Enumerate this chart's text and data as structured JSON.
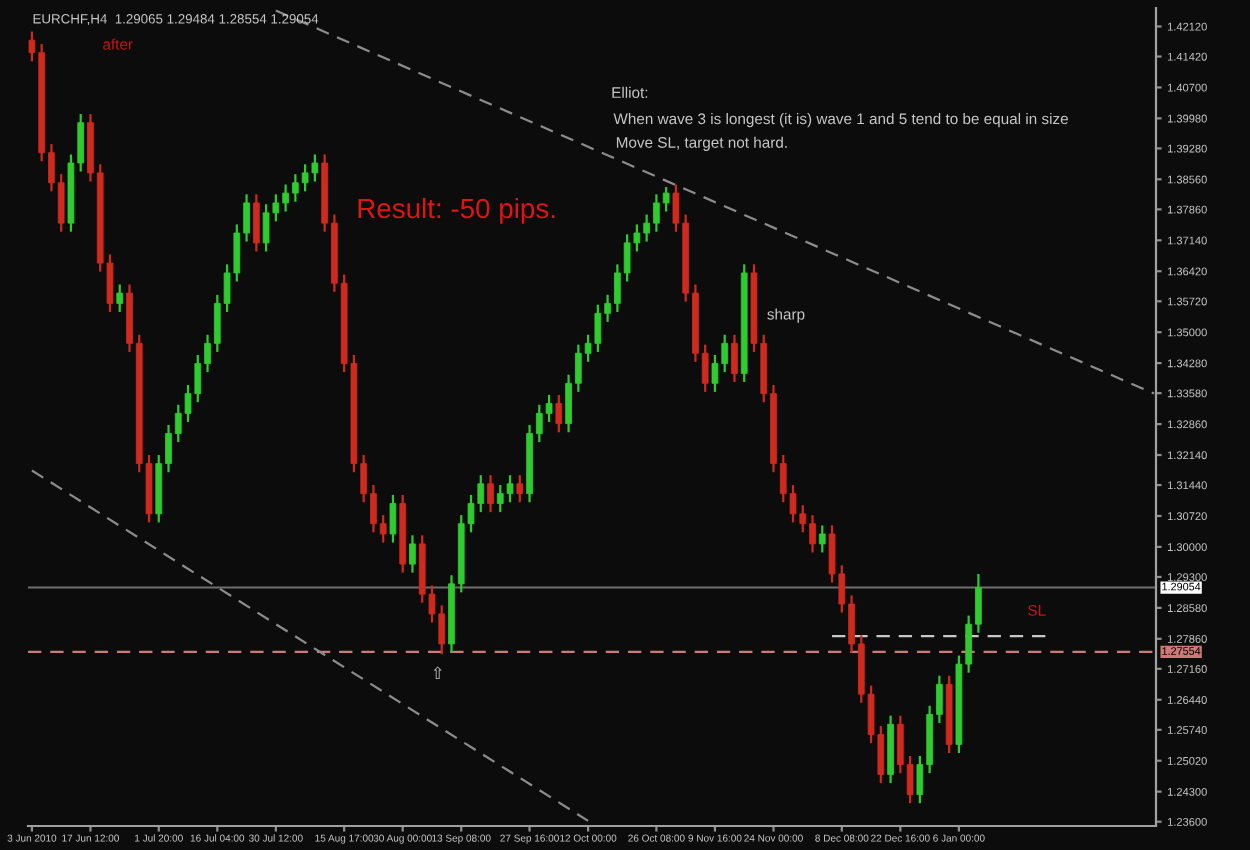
{
  "chart_data": {
    "type": "candlestick",
    "title": "EURCHF,H4  1.29065 1.29484 1.28554 1.29054",
    "categories": [
      "3 Jun 2010",
      null,
      null,
      null,
      null,
      null,
      "17 Jun 12:00",
      null,
      null,
      null,
      null,
      null,
      null,
      "1 Jul 20:00",
      null,
      null,
      null,
      null,
      null,
      "16 Jul 04:00",
      null,
      null,
      null,
      null,
      null,
      "30 Jul 12:00",
      null,
      null,
      null,
      null,
      null,
      null,
      "15 Aug 17:00",
      null,
      null,
      null,
      null,
      null,
      "30 Aug 00:00",
      null,
      null,
      null,
      null,
      null,
      "13 Sep 08:00",
      null,
      null,
      null,
      null,
      null,
      null,
      "27 Sep 16:00",
      null,
      null,
      null,
      null,
      null,
      "12 Oct 00:00",
      null,
      null,
      null,
      null,
      null,
      null,
      "26 Oct 08:00",
      null,
      null,
      null,
      null,
      null,
      "9 Nov 16:00",
      null,
      null,
      null,
      null,
      null,
      "24 Nov 00:00",
      null,
      null,
      null,
      null,
      null,
      null,
      "8 Dec 08:00",
      null,
      null,
      null,
      null,
      null,
      "22 Dec 16:00",
      null,
      null,
      null,
      null,
      null,
      "6 Jan 00:00",
      null,
      null,
      null,
      null,
      null,
      null,
      null,
      null,
      null,
      null,
      null,
      null,
      null,
      null,
      null,
      null,
      null,
      null,
      null,
      null
    ],
    "ohlc": [
      [
        1.418,
        1.42,
        1.4131,
        1.4151
      ],
      [
        1.4151,
        1.4171,
        1.3898,
        1.3918
      ],
      [
        1.3918,
        1.3938,
        1.3828,
        1.3848
      ],
      [
        1.3848,
        1.3868,
        1.3734,
        1.3754
      ],
      [
        1.3754,
        1.3914,
        1.3734,
        1.3894
      ],
      [
        1.3894,
        1.4008,
        1.3874,
        1.3988
      ],
      [
        1.3988,
        1.4008,
        1.3851,
        1.3871
      ],
      [
        1.3871,
        1.3891,
        1.3641,
        1.3661
      ],
      [
        1.3661,
        1.3681,
        1.3547,
        1.3567
      ],
      [
        1.3567,
        1.3611,
        1.3547,
        1.3591
      ],
      [
        1.3591,
        1.3611,
        1.3454,
        1.3474
      ],
      [
        1.3474,
        1.3494,
        1.3174,
        1.3194
      ],
      [
        1.3194,
        1.3214,
        1.3057,
        1.3077
      ],
      [
        1.3077,
        1.3214,
        1.3057,
        1.3194
      ],
      [
        1.3194,
        1.3284,
        1.3174,
        1.3264
      ],
      [
        1.3264,
        1.3331,
        1.3244,
        1.3311
      ],
      [
        1.3311,
        1.3377,
        1.3291,
        1.3357
      ],
      [
        1.3357,
        1.3447,
        1.3337,
        1.3427
      ],
      [
        1.3427,
        1.3494,
        1.3407,
        1.3474
      ],
      [
        1.3474,
        1.3587,
        1.3454,
        1.3567
      ],
      [
        1.3567,
        1.3658,
        1.3547,
        1.3638
      ],
      [
        1.3638,
        1.3751,
        1.3618,
        1.3731
      ],
      [
        1.3731,
        1.3821,
        1.3711,
        1.3801
      ],
      [
        1.3801,
        1.3821,
        1.3688,
        1.3708
      ],
      [
        1.3708,
        1.3798,
        1.3688,
        1.3778
      ],
      [
        1.3778,
        1.3821,
        1.3758,
        1.3801
      ],
      [
        1.3801,
        1.3844,
        1.3781,
        1.3824
      ],
      [
        1.3824,
        1.3868,
        1.3804,
        1.3848
      ],
      [
        1.3848,
        1.3891,
        1.3828,
        1.3871
      ],
      [
        1.3871,
        1.3914,
        1.3851,
        1.3894
      ],
      [
        1.3894,
        1.3914,
        1.3734,
        1.3754
      ],
      [
        1.3754,
        1.3774,
        1.3594,
        1.3614
      ],
      [
        1.3614,
        1.3634,
        1.3407,
        1.3427
      ],
      [
        1.3427,
        1.3447,
        1.3174,
        1.3194
      ],
      [
        1.3194,
        1.3214,
        1.3104,
        1.3124
      ],
      [
        1.3124,
        1.3144,
        1.3034,
        1.3054
      ],
      [
        1.3054,
        1.3074,
        1.301,
        1.303
      ],
      [
        1.303,
        1.3121,
        1.301,
        1.3101
      ],
      [
        1.3101,
        1.3121,
        1.294,
        1.296
      ],
      [
        1.296,
        1.3027,
        1.294,
        1.3007
      ],
      [
        1.3007,
        1.3027,
        1.287,
        1.289
      ],
      [
        1.289,
        1.291,
        1.2824,
        1.2844
      ],
      [
        1.2844,
        1.2864,
        1.275,
        1.2774
      ],
      [
        1.2774,
        1.2934,
        1.2754,
        1.2914
      ],
      [
        1.2914,
        1.3074,
        1.2894,
        1.3054
      ],
      [
        1.3054,
        1.3121,
        1.3034,
        1.3101
      ],
      [
        1.3101,
        1.3167,
        1.3081,
        1.3147
      ],
      [
        1.3147,
        1.3167,
        1.3081,
        1.3101
      ],
      [
        1.3101,
        1.3144,
        1.3081,
        1.3124
      ],
      [
        1.3124,
        1.3167,
        1.3104,
        1.3147
      ],
      [
        1.3147,
        1.3167,
        1.3104,
        1.3124
      ],
      [
        1.3124,
        1.3284,
        1.3104,
        1.3264
      ],
      [
        1.3264,
        1.3331,
        1.3244,
        1.3311
      ],
      [
        1.3311,
        1.3354,
        1.3291,
        1.3334
      ],
      [
        1.3334,
        1.3354,
        1.3267,
        1.3287
      ],
      [
        1.3287,
        1.3401,
        1.3267,
        1.3381
      ],
      [
        1.3381,
        1.3471,
        1.3361,
        1.3451
      ],
      [
        1.3451,
        1.3494,
        1.3431,
        1.3474
      ],
      [
        1.3474,
        1.3564,
        1.3454,
        1.3544
      ],
      [
        1.3544,
        1.3587,
        1.3524,
        1.3567
      ],
      [
        1.3567,
        1.3658,
        1.3547,
        1.3638
      ],
      [
        1.3638,
        1.3728,
        1.3618,
        1.3708
      ],
      [
        1.3708,
        1.3751,
        1.3688,
        1.3731
      ],
      [
        1.3731,
        1.3774,
        1.3711,
        1.3754
      ],
      [
        1.3754,
        1.3821,
        1.3734,
        1.3801
      ],
      [
        1.3801,
        1.3838,
        1.3781,
        1.3824
      ],
      [
        1.3824,
        1.3844,
        1.3734,
        1.3754
      ],
      [
        1.3754,
        1.3774,
        1.3571,
        1.3591
      ],
      [
        1.3591,
        1.3611,
        1.3431,
        1.3451
      ],
      [
        1.3451,
        1.3471,
        1.3361,
        1.3381
      ],
      [
        1.3381,
        1.3447,
        1.3361,
        1.3427
      ],
      [
        1.3427,
        1.3494,
        1.3407,
        1.3474
      ],
      [
        1.3474,
        1.3494,
        1.3384,
        1.3404
      ],
      [
        1.3404,
        1.3658,
        1.3384,
        1.3638
      ],
      [
        1.3638,
        1.3658,
        1.3454,
        1.3474
      ],
      [
        1.3474,
        1.3494,
        1.3337,
        1.3357
      ],
      [
        1.3357,
        1.3377,
        1.3174,
        1.3194
      ],
      [
        1.3194,
        1.3214,
        1.3104,
        1.3124
      ],
      [
        1.3124,
        1.3144,
        1.3057,
        1.3077
      ],
      [
        1.3077,
        1.3097,
        1.3034,
        1.3054
      ],
      [
        1.3054,
        1.3074,
        1.2987,
        1.3007
      ],
      [
        1.3007,
        1.305,
        1.2987,
        1.303
      ],
      [
        1.303,
        1.305,
        1.2917,
        1.2937
      ],
      [
        1.2937,
        1.2957,
        1.2847,
        1.2867
      ],
      [
        1.2867,
        1.2887,
        1.2754,
        1.2774
      ],
      [
        1.2774,
        1.2794,
        1.2637,
        1.2657
      ],
      [
        1.2657,
        1.2677,
        1.2543,
        1.2563
      ],
      [
        1.2563,
        1.2583,
        1.245,
        1.247
      ],
      [
        1.247,
        1.2607,
        1.245,
        1.2587
      ],
      [
        1.2587,
        1.2607,
        1.2473,
        1.2493
      ],
      [
        1.2493,
        1.2513,
        1.2403,
        1.2423
      ],
      [
        1.2423,
        1.2513,
        1.2403,
        1.2493
      ],
      [
        1.2493,
        1.263,
        1.2473,
        1.261
      ],
      [
        1.261,
        1.27,
        1.259,
        1.268
      ],
      [
        1.268,
        1.27,
        1.252,
        1.254
      ],
      [
        1.254,
        1.2747,
        1.252,
        1.2727
      ],
      [
        1.2727,
        1.284,
        1.2707,
        1.282
      ],
      [
        1.282,
        1.2937,
        1.28,
        1.29054
      ],
      null,
      null,
      null,
      null,
      null,
      null,
      null,
      null,
      null,
      null,
      null,
      null,
      null,
      null,
      null,
      null,
      null,
      null
    ],
    "series": [
      {
        "type": "line",
        "color": "#8c8c8c",
        "line_style": "dashed",
        "values": [
          null,
          null,
          null,
          null,
          null,
          null,
          null,
          null,
          null,
          null,
          null,
          null,
          null,
          null,
          null,
          null,
          null,
          null,
          null,
          null,
          null,
          null,
          null,
          null,
          null,
          1.4249,
          null,
          null,
          null,
          null,
          null,
          null,
          null,
          null,
          null,
          null,
          null,
          null,
          null,
          null,
          null,
          null,
          null,
          null,
          null,
          null,
          null,
          null,
          null,
          null,
          null,
          null,
          null,
          null,
          null,
          null,
          null,
          null,
          null,
          null,
          null,
          null,
          null,
          null,
          null,
          null,
          null,
          null,
          null,
          null,
          null,
          null,
          null,
          null,
          null,
          null,
          null,
          null,
          null,
          null,
          null,
          null,
          null,
          null,
          null,
          null,
          null,
          null,
          null,
          null,
          null,
          null,
          null,
          null,
          null,
          null,
          null,
          null,
          null,
          null,
          null,
          null,
          null,
          null,
          null,
          null,
          null,
          null,
          null,
          null,
          null,
          null,
          null,
          null,
          null,
          1.3357
        ]
      },
      {
        "type": "line",
        "color": "#8c8c8c",
        "line_style": "dashed",
        "values": [
          1.3178,
          null,
          null,
          null,
          null,
          null,
          null,
          null,
          null,
          null,
          null,
          null,
          null,
          null,
          null,
          null,
          null,
          null,
          null,
          null,
          null,
          null,
          null,
          null,
          null,
          null,
          null,
          null,
          null,
          null,
          null,
          null,
          null,
          null,
          null,
          null,
          null,
          null,
          null,
          null,
          null,
          null,
          null,
          null,
          null,
          null,
          null,
          null,
          null,
          null,
          null,
          null,
          null,
          null,
          null,
          null,
          null,
          1.2362,
          null,
          null,
          null,
          null,
          null,
          null,
          null,
          null,
          null,
          null,
          null,
          null,
          null,
          null,
          null,
          null,
          null,
          null,
          null,
          null,
          null,
          null,
          null,
          null,
          null,
          null,
          null,
          null,
          null,
          null,
          null,
          null,
          null,
          null,
          null,
          null,
          null,
          null,
          null,
          null,
          null,
          null,
          null,
          null,
          null,
          null,
          null,
          null,
          null,
          null,
          null,
          null,
          null,
          null,
          null,
          null,
          null,
          null
        ]
      },
      {
        "type": "line",
        "color": "#c8c8c8",
        "line_style": "dashed",
        "values": [
          null,
          null,
          null,
          null,
          null,
          null,
          null,
          null,
          null,
          null,
          null,
          null,
          null,
          null,
          null,
          null,
          null,
          null,
          null,
          null,
          null,
          null,
          null,
          null,
          null,
          null,
          null,
          null,
          null,
          null,
          null,
          null,
          null,
          null,
          null,
          null,
          null,
          null,
          null,
          null,
          null,
          null,
          null,
          null,
          null,
          null,
          null,
          null,
          null,
          null,
          null,
          null,
          null,
          null,
          null,
          null,
          null,
          null,
          null,
          null,
          null,
          null,
          null,
          null,
          null,
          null,
          null,
          null,
          null,
          null,
          null,
          null,
          null,
          null,
          null,
          null,
          null,
          null,
          null,
          null,
          null,
          null,
          1.2792,
          null,
          null,
          null,
          null,
          null,
          null,
          null,
          null,
          null,
          null,
          null,
          null,
          null,
          null,
          null,
          null,
          null,
          null,
          null,
          null,
          null,
          1.2792,
          null,
          null,
          null,
          null,
          null,
          null,
          null,
          null,
          null,
          null,
          null
        ]
      }
    ],
    "ylim": [
      1.235,
      1.4255
    ],
    "yticks": [
      {
        "value": 1.4212,
        "label": "1.42120"
      },
      {
        "value": 1.4142,
        "label": "1.41420"
      },
      {
        "value": 1.407,
        "label": "1.40700"
      },
      {
        "value": 1.3998,
        "label": "1.39980"
      },
      {
        "value": 1.3928,
        "label": "1.39280"
      },
      {
        "value": 1.3856,
        "label": "1.38560"
      },
      {
        "value": 1.3786,
        "label": "1.37860"
      },
      {
        "value": 1.3714,
        "label": "1.37140"
      },
      {
        "value": 1.3642,
        "label": "1.36420"
      },
      {
        "value": 1.3572,
        "label": "1.35720"
      },
      {
        "value": 1.35,
        "label": "1.35000"
      },
      {
        "value": 1.3428,
        "label": "1.34280"
      },
      {
        "value": 1.3358,
        "label": "1.33580"
      },
      {
        "value": 1.3286,
        "label": "1.32860"
      },
      {
        "value": 1.3214,
        "label": "1.32140"
      },
      {
        "value": 1.3144,
        "label": "1.31440"
      },
      {
        "value": 1.3072,
        "label": "1.30720"
      },
      {
        "value": 1.3,
        "label": "1.30000"
      },
      {
        "value": 1.293,
        "label": "1.29300"
      },
      {
        "value": 1.2858,
        "label": "1.28580"
      },
      {
        "value": 1.2786,
        "label": "1.27860"
      },
      {
        "value": 1.2716,
        "label": "1.27160"
      },
      {
        "value": 1.2644,
        "label": "1.26440"
      },
      {
        "value": 1.2574,
        "label": "1.25740"
      },
      {
        "value": 1.2502,
        "label": "1.25020"
      },
      {
        "value": 1.243,
        "label": "1.24300"
      },
      {
        "value": 1.236,
        "label": "1.23600"
      }
    ],
    "ref_lines": [
      {
        "axis": "y",
        "value": 1.29054,
        "label": "1.29054",
        "color": "#6e6e6e",
        "line_style": "solid"
      },
      {
        "axis": "y",
        "value": 1.27554,
        "label": "1.27554",
        "color": "#d07878",
        "line_style": "dashed"
      }
    ],
    "annotations": [
      "after",
      "Elliot:",
      "When wave 3 is longest (it is) wave 1 and 5 tend to be equal in size",
      "Move SL, target not hard.",
      "Result: -50 pips.",
      "sharp",
      "SL",
      "⇧"
    ],
    "grid": false,
    "legend": false
  }
}
